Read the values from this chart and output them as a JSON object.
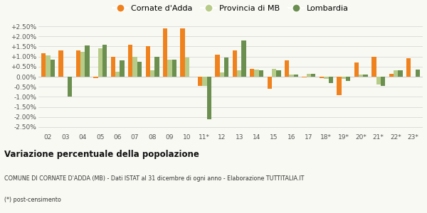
{
  "years": [
    "02",
    "03",
    "04",
    "05",
    "06",
    "07",
    "08",
    "09",
    "10",
    "11*",
    "12",
    "13",
    "14",
    "15",
    "16",
    "17",
    "18*",
    "19*",
    "20*",
    "21*",
    "22*",
    "23*"
  ],
  "cornate": [
    1.15,
    1.3,
    1.3,
    -0.07,
    1.0,
    1.6,
    1.5,
    2.4,
    2.4,
    -0.45,
    1.1,
    1.3,
    0.4,
    -0.6,
    0.8,
    -0.05,
    -0.07,
    -0.9,
    0.7,
    1.0,
    0.15,
    0.9
  ],
  "provincia": [
    1.05,
    0.0,
    1.25,
    1.4,
    0.25,
    1.0,
    0.3,
    0.85,
    0.95,
    -0.45,
    0.2,
    0.3,
    0.35,
    0.4,
    0.1,
    0.15,
    -0.1,
    -0.1,
    0.1,
    -0.4,
    0.3,
    0.0
  ],
  "lombardia": [
    0.85,
    -1.0,
    1.55,
    1.6,
    0.8,
    0.75,
    1.0,
    0.85,
    0.0,
    -2.1,
    0.95,
    1.8,
    0.3,
    0.3,
    0.1,
    0.15,
    -0.3,
    -0.2,
    0.1,
    -0.45,
    0.3,
    0.35
  ],
  "color_cornate": "#f0821e",
  "color_provincia": "#b8cc8a",
  "color_lombardia": "#6b8f4e",
  "background": "#f9f9f4",
  "title": "Variazione percentuale della popolazione",
  "subtitle": "COMUNE DI CORNATE D'ADDA (MB) - Dati ISTAT al 31 dicembre di ogni anno - Elaborazione TUTTITALIA.IT",
  "footnote": "(*) post-censimento",
  "legend_labels": [
    "Cornate d'Adda",
    "Provincia di MB",
    "Lombardia"
  ],
  "ylim": [
    -2.75,
    2.75
  ],
  "yticks": [
    -2.5,
    -2.0,
    -1.5,
    -1.0,
    -0.5,
    0.0,
    0.5,
    1.0,
    1.5,
    2.0,
    2.5
  ]
}
